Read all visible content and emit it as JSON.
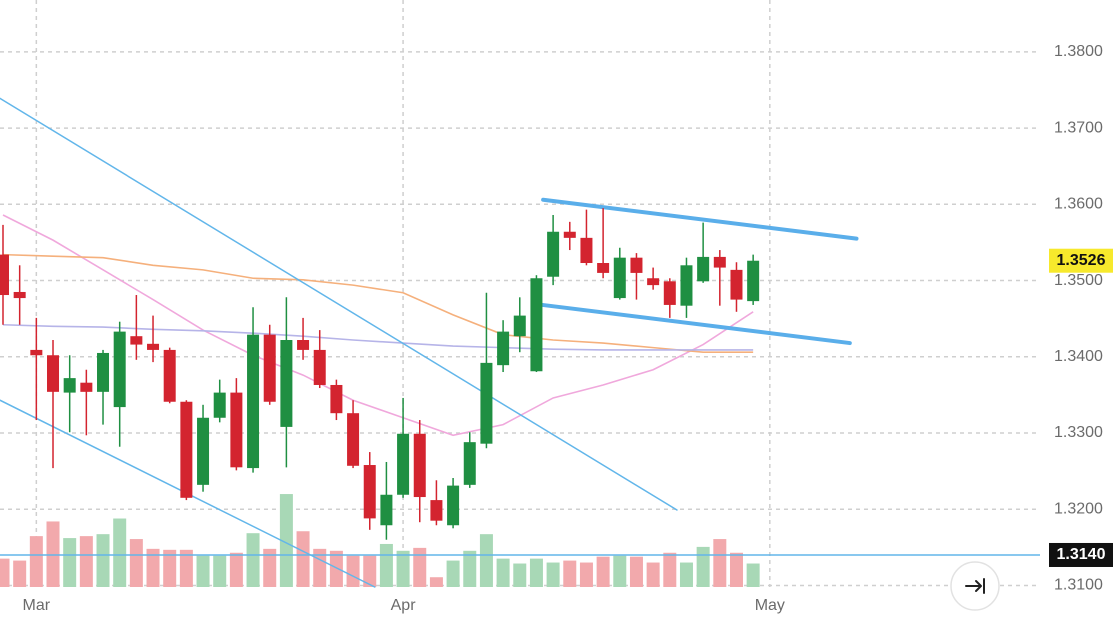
{
  "chart_data": {
    "type": "candlestick",
    "categories": [
      null,
      null,
      "Mar",
      null,
      null,
      null,
      null,
      null,
      null,
      null,
      null,
      null,
      null,
      null,
      null,
      null,
      null,
      null,
      null,
      null,
      null,
      null,
      null,
      null,
      "Apr",
      null,
      null,
      null,
      null,
      null,
      null,
      null,
      null,
      null,
      null,
      null,
      null,
      null,
      null,
      null,
      null,
      null,
      null,
      null,
      null,
      null,
      "May"
    ],
    "open": [
      1.3534,
      1.3485,
      1.3409,
      1.3402,
      1.3353,
      1.3366,
      1.3354,
      1.3334,
      1.3427,
      1.3417,
      1.3409,
      1.3341,
      1.3232,
      1.332,
      1.3353,
      1.3254,
      1.3429,
      1.3308,
      1.3422,
      1.3409,
      1.3363,
      1.3326,
      1.3258,
      1.3179,
      1.3219,
      1.3299,
      1.3212,
      1.3179,
      1.3232,
      1.3286,
      1.3389,
      1.3427,
      1.3381,
      1.3505,
      1.3564,
      1.3556,
      1.3523,
      1.3477,
      1.353,
      1.3503,
      1.3499,
      1.3467,
      1.3499,
      1.3531,
      1.3514,
      1.3473,
      null
    ],
    "high": [
      1.3573,
      1.352,
      1.3451,
      1.3422,
      1.3402,
      1.3383,
      1.3409,
      1.3446,
      1.3481,
      1.3454,
      1.3412,
      1.3343,
      1.3337,
      1.337,
      1.3372,
      1.3465,
      1.3442,
      1.3478,
      1.3451,
      1.3435,
      1.337,
      1.3343,
      1.3275,
      1.3262,
      1.3346,
      1.3317,
      1.3238,
      1.3241,
      1.3301,
      1.3484,
      1.3448,
      1.3478,
      1.3507,
      1.3586,
      1.3577,
      1.3593,
      1.3595,
      1.3543,
      1.3536,
      1.3517,
      1.3503,
      1.353,
      1.3576,
      1.354,
      1.3524,
      1.3534,
      null
    ],
    "low": [
      1.3442,
      1.3442,
      1.3317,
      1.3254,
      1.3301,
      1.3297,
      1.3311,
      1.3282,
      1.3396,
      1.3393,
      1.3339,
      1.3212,
      1.3223,
      1.3314,
      1.3251,
      1.3248,
      1.3337,
      1.3255,
      1.3396,
      1.3359,
      1.3317,
      1.3254,
      1.3173,
      1.316,
      1.3215,
      1.3183,
      1.3179,
      1.3175,
      1.3228,
      1.328,
      1.338,
      1.3406,
      1.338,
      1.3494,
      1.354,
      1.352,
      1.3503,
      1.3475,
      1.3475,
      1.3488,
      1.3451,
      1.3451,
      1.3497,
      1.3467,
      1.3459,
      1.3468,
      null
    ],
    "close": [
      1.3481,
      1.3477,
      1.3402,
      1.3354,
      1.3372,
      1.3354,
      1.3405,
      1.3433,
      1.3416,
      1.3409,
      1.3341,
      1.3215,
      1.332,
      1.3353,
      1.3255,
      1.3429,
      1.3341,
      1.3422,
      1.3409,
      1.3363,
      1.3326,
      1.3257,
      1.3188,
      1.3219,
      1.3299,
      1.3216,
      1.3185,
      1.3231,
      1.3288,
      1.3392,
      1.3433,
      1.3454,
      1.3503,
      1.3564,
      1.3556,
      1.3523,
      1.351,
      1.353,
      1.351,
      1.3494,
      1.3468,
      1.352,
      1.3531,
      1.3517,
      1.3475,
      1.3526,
      null
    ],
    "volume": [
      29,
      27,
      52,
      67,
      50,
      52,
      54,
      70,
      49,
      39,
      38,
      38,
      32,
      32,
      35,
      55,
      39,
      95,
      57,
      39,
      37,
      32,
      32,
      44,
      37,
      40,
      10,
      27,
      37,
      54,
      29,
      24,
      29,
      25,
      27,
      25,
      31,
      32,
      31,
      25,
      35,
      25,
      41,
      49,
      35,
      24,
      null
    ],
    "colors": {
      "up": "#1f8f42",
      "down": "#d3242f",
      "volume_up": "#a8d8b6",
      "volume_down": "#f2a9ac"
    },
    "ylim": [
      1.3098,
      1.3868
    ],
    "y2lim": [
      0,
      600
    ],
    "yticks": [
      {
        "value": 1.31,
        "label": "1.3100"
      },
      {
        "value": 1.32,
        "label": "1.3200"
      },
      {
        "value": 1.33,
        "label": "1.3300"
      },
      {
        "value": 1.34,
        "label": "1.3400"
      },
      {
        "value": 1.35,
        "label": "1.3500"
      },
      {
        "value": 1.36,
        "label": "1.3600"
      },
      {
        "value": 1.37,
        "label": "1.3700"
      },
      {
        "value": 1.38,
        "label": "1.3800"
      }
    ],
    "grid": true,
    "moving_averages": [
      {
        "color": "#f0a8dc",
        "x": [
          0,
          3,
          6,
          9,
          12,
          15,
          18,
          21,
          24,
          27,
          30,
          33,
          36,
          39,
          42,
          45
        ],
        "values": [
          1.3586,
          1.3553,
          1.3514,
          1.3475,
          1.3435,
          1.3402,
          1.3376,
          1.3343,
          1.332,
          1.3297,
          1.3311,
          1.3346,
          1.3363,
          1.3383,
          1.3416,
          1.3459
        ]
      },
      {
        "color": "#f5b07c",
        "x": [
          0,
          3,
          6,
          9,
          12,
          15,
          18,
          21,
          24,
          27,
          30,
          33,
          36,
          39,
          42,
          45
        ],
        "values": [
          1.3534,
          1.3532,
          1.353,
          1.352,
          1.3514,
          1.3503,
          1.3501,
          1.3494,
          1.3484,
          1.3455,
          1.3429,
          1.3422,
          1.3418,
          1.3412,
          1.3406,
          1.3406
        ]
      },
      {
        "color": "#b6b4e8",
        "x": [
          0,
          3,
          6,
          9,
          12,
          15,
          18,
          21,
          24,
          27,
          30,
          33,
          36,
          39,
          42,
          45
        ],
        "values": [
          1.3442,
          1.344,
          1.3439,
          1.3436,
          1.3434,
          1.3431,
          1.3427,
          1.3422,
          1.3418,
          1.3414,
          1.3412,
          1.341,
          1.3409,
          1.3409,
          1.3409,
          1.3409
        ]
      }
    ],
    "trendlines": [
      {
        "color": "#62b6ea",
        "width": 1.5,
        "x": [
          -0.18,
          40.43
        ],
        "values": [
          1.3739,
          1.3199
        ]
      },
      {
        "color": "#62b6ea",
        "width": 1.5,
        "x": [
          -0.18,
          22.3
        ],
        "values": [
          1.3343,
          1.3098
        ]
      },
      {
        "color": "#5aaeea",
        "width": 4,
        "x": [
          32.4,
          51.2
        ],
        "values": [
          1.3606,
          1.3555
        ]
      },
      {
        "color": "#5aaeea",
        "width": 4,
        "x": [
          32.0,
          50.8
        ],
        "values": [
          1.3469,
          1.3418
        ]
      }
    ],
    "horizontal_line": {
      "value": 1.314,
      "label": "1.3140",
      "color": "#62b6ea"
    },
    "price_label": {
      "value": 1.3526,
      "label": "1.3526",
      "color": "#f7e92c"
    }
  }
}
